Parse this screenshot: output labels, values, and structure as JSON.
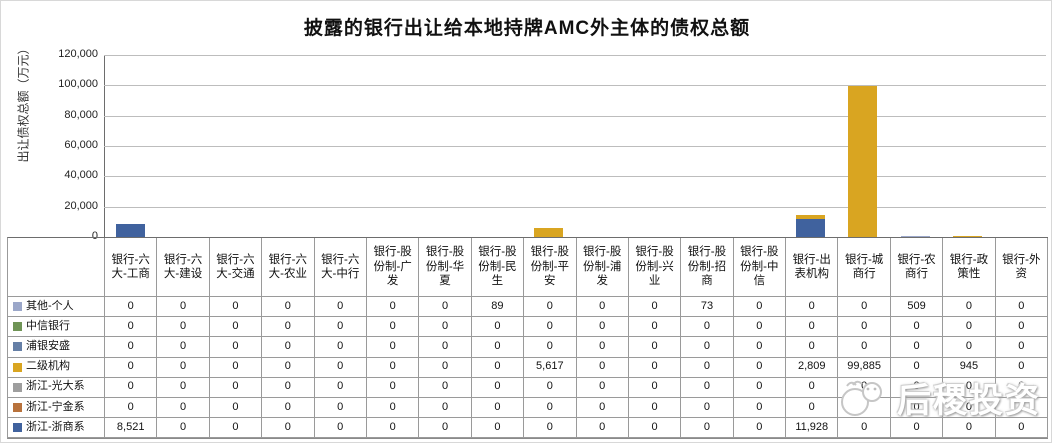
{
  "chart_data": {
    "type": "bar",
    "stacked": true,
    "stack_render_order": "last-series-at-bottom",
    "title": "披露的银行出让给本地持牌AMC外主体的债权总额",
    "xlabel": "",
    "ylabel": "出让债权总额（万元）",
    "ylim": [
      0,
      120000
    ],
    "yticks": [
      120000,
      100000,
      80000,
      60000,
      40000,
      20000,
      0
    ],
    "grid": true,
    "legend_position": "data-table-left",
    "categories": [
      "银行-六大-工商",
      "银行-六大-建设",
      "银行-六大-交通",
      "银行-六大-农业",
      "银行-六大-中行",
      "银行-股份制-广发",
      "银行-股份制-华夏",
      "银行-股份制-民生",
      "银行-股份制-平安",
      "银行-股份制-浦发",
      "银行-股份制-兴业",
      "银行-股份制-招商",
      "银行-股份制-中信",
      "银行-出表机构",
      "银行-城商行",
      "银行-农商行",
      "银行-政策性",
      "银行-外资"
    ],
    "series": [
      {
        "name": "其他-个人",
        "color": "#9ba7c9",
        "values": [
          0,
          0,
          0,
          0,
          0,
          0,
          0,
          89,
          0,
          0,
          0,
          73,
          0,
          0,
          0,
          509,
          0,
          0
        ]
      },
      {
        "name": "中信银行",
        "color": "#6f9456",
        "values": [
          0,
          0,
          0,
          0,
          0,
          0,
          0,
          0,
          0,
          0,
          0,
          0,
          0,
          0,
          0,
          0,
          0,
          0
        ]
      },
      {
        "name": "浦银安盛",
        "color": "#657fa6",
        "values": [
          0,
          0,
          0,
          0,
          0,
          0,
          0,
          0,
          0,
          0,
          0,
          0,
          0,
          0,
          0,
          0,
          0,
          0
        ]
      },
      {
        "name": "二级机构",
        "color": "#d9a521",
        "values": [
          0,
          0,
          0,
          0,
          0,
          0,
          0,
          0,
          5617,
          0,
          0,
          0,
          0,
          2809,
          99885,
          0,
          945,
          0
        ]
      },
      {
        "name": "浙江-光大系",
        "color": "#9e9e9e",
        "values": [
          0,
          0,
          0,
          0,
          0,
          0,
          0,
          0,
          0,
          0,
          0,
          0,
          0,
          0,
          0,
          0,
          0,
          0
        ]
      },
      {
        "name": "浙江-宁金系",
        "color": "#b8723c",
        "values": [
          0,
          0,
          0,
          0,
          0,
          0,
          0,
          0,
          0,
          0,
          0,
          0,
          0,
          0,
          0,
          0,
          0,
          0
        ]
      },
      {
        "name": "浙江-浙商系",
        "color": "#40629e",
        "values": [
          8521,
          0,
          0,
          0,
          0,
          0,
          0,
          0,
          0,
          0,
          0,
          0,
          0,
          11928,
          0,
          0,
          0,
          0
        ]
      }
    ]
  },
  "watermark": {
    "text": "后稷投资",
    "logo": "sheep-logo"
  }
}
